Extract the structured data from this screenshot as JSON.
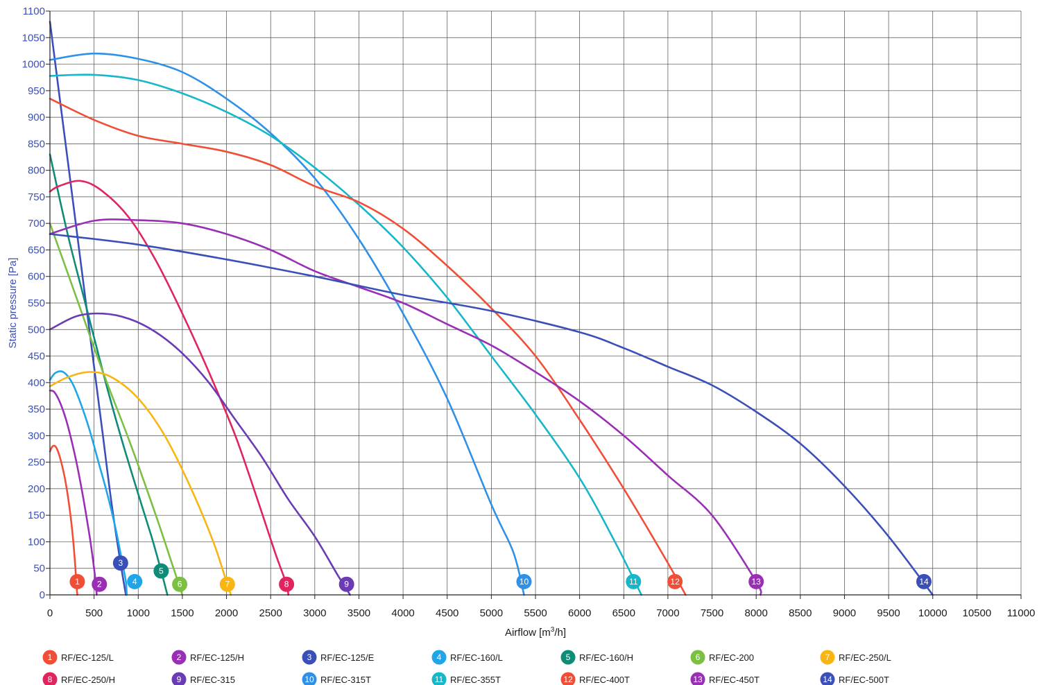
{
  "chart_data": {
    "type": "line",
    "title": "",
    "xlabel_main": "Airflow [m",
    "xlabel_sup": "3",
    "xlabel_end": "/h]",
    "ylabel": "Static pressure [Pa]",
    "xlim": [
      0,
      11000
    ],
    "ylim": [
      0,
      1100
    ],
    "x_ticks": [
      0,
      500,
      1000,
      1500,
      2000,
      2500,
      3000,
      3500,
      4000,
      4500,
      5000,
      5500,
      6000,
      6500,
      7000,
      7500,
      8000,
      8500,
      9000,
      9500,
      10000,
      10500,
      11000
    ],
    "y_ticks": [
      0,
      50,
      100,
      150,
      200,
      250,
      300,
      350,
      400,
      450,
      500,
      550,
      600,
      650,
      700,
      750,
      800,
      850,
      900,
      950,
      1000,
      1050,
      1100
    ],
    "grid": true,
    "legend_position": "bottom",
    "series": [
      {
        "id": "1",
        "name": "RF/EC-125/L",
        "color": "#f04e37",
        "label_at": [
          310,
          25
        ],
        "points": [
          [
            0,
            270
          ],
          [
            30,
            280
          ],
          [
            70,
            278
          ],
          [
            120,
            255
          ],
          [
            180,
            210
          ],
          [
            240,
            140
          ],
          [
            280,
            70
          ],
          [
            300,
            20
          ],
          [
            310,
            0
          ]
        ]
      },
      {
        "id": "2",
        "name": "RF/EC-125/H",
        "color": "#9a2fb5",
        "label_at": [
          560,
          20
        ],
        "points": [
          [
            0,
            385
          ],
          [
            50,
            382
          ],
          [
            120,
            360
          ],
          [
            200,
            320
          ],
          [
            300,
            250
          ],
          [
            380,
            180
          ],
          [
            450,
            110
          ],
          [
            500,
            50
          ],
          [
            520,
            20
          ],
          [
            530,
            0
          ]
        ]
      },
      {
        "id": "3",
        "name": "RF/EC-125/E",
        "color": "#3a4fb8",
        "label_at": [
          800,
          60
        ],
        "points": [
          [
            0,
            1080
          ],
          [
            100,
            950
          ],
          [
            200,
            820
          ],
          [
            300,
            690
          ],
          [
            400,
            560
          ],
          [
            500,
            430
          ],
          [
            600,
            300
          ],
          [
            700,
            170
          ],
          [
            800,
            60
          ],
          [
            860,
            0
          ]
        ]
      },
      {
        "id": "4",
        "name": "RF/EC-160/L",
        "color": "#1fa6e8",
        "label_at": [
          960,
          25
        ],
        "points": [
          [
            0,
            405
          ],
          [
            60,
            418
          ],
          [
            150,
            420
          ],
          [
            250,
            400
          ],
          [
            350,
            360
          ],
          [
            450,
            310
          ],
          [
            550,
            250
          ],
          [
            650,
            190
          ],
          [
            750,
            120
          ],
          [
            820,
            60
          ],
          [
            860,
            25
          ],
          [
            870,
            0
          ]
        ]
      },
      {
        "id": "5",
        "name": "RF/EC-160/H",
        "color": "#0f8c78",
        "label_at": [
          1260,
          45
        ],
        "points": [
          [
            0,
            830
          ],
          [
            200,
            680
          ],
          [
            400,
            550
          ],
          [
            600,
            420
          ],
          [
            800,
            300
          ],
          [
            1000,
            190
          ],
          [
            1150,
            110
          ],
          [
            1260,
            45
          ],
          [
            1330,
            0
          ]
        ]
      },
      {
        "id": "6",
        "name": "RF/EC-200",
        "color": "#7cc043",
        "label_at": [
          1470,
          20
        ],
        "points": [
          [
            0,
            700
          ],
          [
            300,
            560
          ],
          [
            600,
            420
          ],
          [
            900,
            290
          ],
          [
            1200,
            150
          ],
          [
            1400,
            50
          ],
          [
            1500,
            0
          ]
        ]
      },
      {
        "id": "7",
        "name": "RF/EC-250/L",
        "color": "#f9b612",
        "label_at": [
          2010,
          20
        ],
        "points": [
          [
            0,
            393
          ],
          [
            200,
            410
          ],
          [
            450,
            420
          ],
          [
            700,
            410
          ],
          [
            1000,
            370
          ],
          [
            1300,
            300
          ],
          [
            1600,
            200
          ],
          [
            1850,
            100
          ],
          [
            1990,
            30
          ],
          [
            2050,
            0
          ]
        ]
      },
      {
        "id": "8",
        "name": "RF/EC-250/H",
        "color": "#e0255e",
        "label_at": [
          2680,
          20
        ],
        "points": [
          [
            0,
            760
          ],
          [
            100,
            770
          ],
          [
            350,
            780
          ],
          [
            600,
            760
          ],
          [
            900,
            710
          ],
          [
            1200,
            630
          ],
          [
            1500,
            530
          ],
          [
            1800,
            420
          ],
          [
            2100,
            300
          ],
          [
            2350,
            180
          ],
          [
            2550,
            80
          ],
          [
            2680,
            20
          ],
          [
            2700,
            0
          ]
        ]
      },
      {
        "id": "9",
        "name": "RF/EC-315",
        "color": "#6a3bb5",
        "label_at": [
          3360,
          20
        ],
        "points": [
          [
            0,
            500
          ],
          [
            300,
            525
          ],
          [
            600,
            530
          ],
          [
            900,
            520
          ],
          [
            1200,
            495
          ],
          [
            1500,
            455
          ],
          [
            1800,
            400
          ],
          [
            2100,
            330
          ],
          [
            2400,
            260
          ],
          [
            2700,
            180
          ],
          [
            3000,
            110
          ],
          [
            3250,
            40
          ],
          [
            3400,
            0
          ]
        ]
      },
      {
        "id": "10",
        "name": "RF/EC-315T",
        "color": "#2e90e6",
        "label_at": [
          5370,
          25
        ],
        "points": [
          [
            0,
            1008
          ],
          [
            500,
            1020
          ],
          [
            1000,
            1010
          ],
          [
            1500,
            985
          ],
          [
            2000,
            935
          ],
          [
            2500,
            870
          ],
          [
            3000,
            785
          ],
          [
            3500,
            670
          ],
          [
            4000,
            530
          ],
          [
            4500,
            370
          ],
          [
            5000,
            170
          ],
          [
            5250,
            80
          ],
          [
            5370,
            0
          ]
        ]
      },
      {
        "id": "11",
        "name": "RF/EC-355T",
        "color": "#16b7c9",
        "label_at": [
          6610,
          25
        ],
        "points": [
          [
            0,
            978
          ],
          [
            500,
            980
          ],
          [
            1000,
            970
          ],
          [
            1500,
            945
          ],
          [
            2000,
            910
          ],
          [
            2500,
            865
          ],
          [
            3000,
            805
          ],
          [
            3500,
            735
          ],
          [
            4000,
            655
          ],
          [
            4500,
            560
          ],
          [
            5000,
            450
          ],
          [
            5500,
            340
          ],
          [
            6000,
            220
          ],
          [
            6400,
            100
          ],
          [
            6700,
            0
          ]
        ]
      },
      {
        "id": "12",
        "name": "RF/EC-400T",
        "color": "#f04e37",
        "label_at": [
          7080,
          25
        ],
        "points": [
          [
            0,
            935
          ],
          [
            500,
            895
          ],
          [
            1000,
            865
          ],
          [
            1500,
            850
          ],
          [
            2000,
            835
          ],
          [
            2500,
            810
          ],
          [
            3000,
            770
          ],
          [
            3500,
            740
          ],
          [
            4000,
            690
          ],
          [
            4500,
            620
          ],
          [
            5000,
            540
          ],
          [
            5500,
            450
          ],
          [
            6000,
            330
          ],
          [
            6500,
            200
          ],
          [
            7000,
            60
          ],
          [
            7200,
            0
          ]
        ]
      },
      {
        "id": "13",
        "name": "RF/EC-450T",
        "color": "#9a2fb5",
        "label_at": [
          8000,
          25
        ],
        "points": [
          [
            0,
            680
          ],
          [
            500,
            705
          ],
          [
            1000,
            706
          ],
          [
            1500,
            700
          ],
          [
            2000,
            680
          ],
          [
            2500,
            650
          ],
          [
            3000,
            610
          ],
          [
            3500,
            580
          ],
          [
            4000,
            550
          ],
          [
            4500,
            510
          ],
          [
            5000,
            470
          ],
          [
            5500,
            420
          ],
          [
            6000,
            365
          ],
          [
            6500,
            300
          ],
          [
            7000,
            225
          ],
          [
            7500,
            150
          ],
          [
            8000,
            25
          ],
          [
            8050,
            0
          ]
        ]
      },
      {
        "id": "14",
        "name": "RF/EC-500T",
        "color": "#3a4fb8",
        "label_at": [
          9900,
          25
        ],
        "points": [
          [
            0,
            680
          ],
          [
            1000,
            660
          ],
          [
            2000,
            632
          ],
          [
            3000,
            600
          ],
          [
            4000,
            565
          ],
          [
            5000,
            535
          ],
          [
            6000,
            495
          ],
          [
            6500,
            465
          ],
          [
            7000,
            430
          ],
          [
            7500,
            395
          ],
          [
            8000,
            345
          ],
          [
            8500,
            285
          ],
          [
            9000,
            205
          ],
          [
            9500,
            110
          ],
          [
            10000,
            0
          ]
        ]
      }
    ]
  }
}
